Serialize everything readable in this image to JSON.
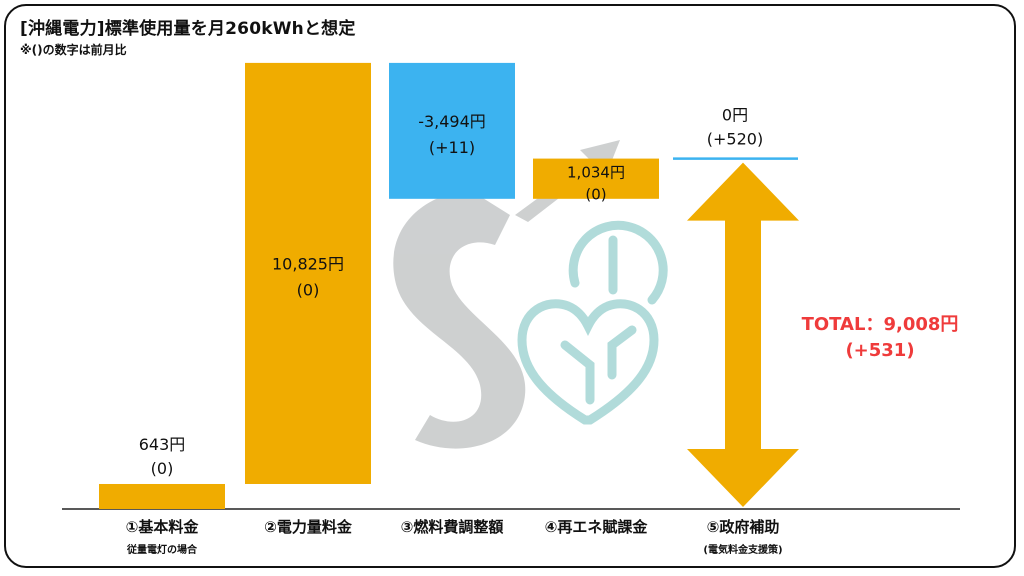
{
  "header": {
    "title": "[沖縄電力]標準使用量を月260kWhと想定",
    "subtitle": "※()の数字は前月比"
  },
  "colors": {
    "positive_bar": "#f0ac00",
    "negative_bar": "#3cb3f0",
    "total_text": "#ef3b3b",
    "subsidy_line": "#3cb3f0"
  },
  "chart_data": {
    "type": "bar",
    "subtype": "waterfall",
    "unit": "円",
    "categories": [
      "①基本料金",
      "②電力量料金",
      "③燃料費調整額",
      "④再エネ賦課金",
      "⑤政府補助"
    ],
    "category_notes": [
      "従量電灯の場合",
      "",
      "",
      "",
      "(電気料金支援策)"
    ],
    "values": [
      643,
      10825,
      -3494,
      1034,
      0
    ],
    "value_labels": [
      "643円",
      "10,825円",
      "-3,494円",
      "1,034円",
      "0円"
    ],
    "changes": [
      0,
      0,
      11,
      0,
      520
    ],
    "change_labels": [
      "(0)",
      "(0)",
      "(+11)",
      "(0)",
      "(+520)"
    ],
    "total": {
      "label": "TOTAL：9,008円",
      "value": 9008,
      "change": 531,
      "change_label": "(+531)"
    }
  }
}
